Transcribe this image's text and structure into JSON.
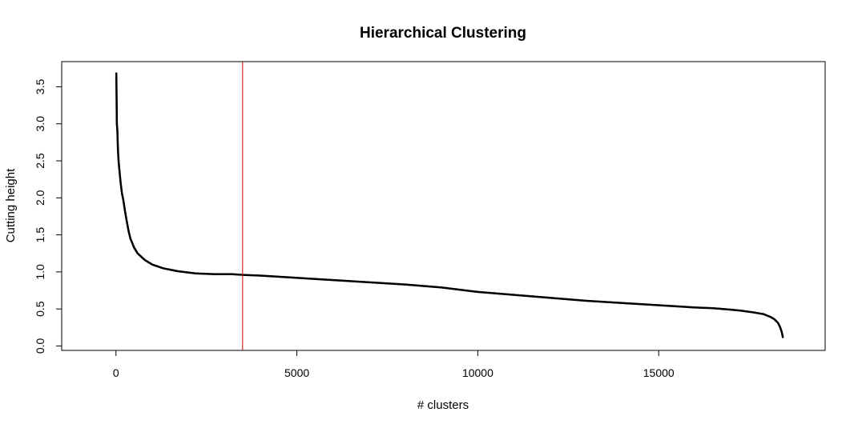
{
  "chart_data": {
    "type": "scatter",
    "title": "Hierarchical Clustering",
    "xlabel": "# clusters",
    "ylabel": "Cutting height",
    "xlim": [
      -1500,
      19600
    ],
    "ylim": [
      -0.06,
      3.84
    ],
    "x_ticks": [
      0,
      5000,
      10000,
      15000
    ],
    "x_tick_labels": [
      "0",
      "5000",
      "10000",
      "15000"
    ],
    "y_ticks": [
      0.0,
      0.5,
      1.0,
      1.5,
      2.0,
      2.5,
      3.0,
      3.5
    ],
    "y_tick_labels": [
      "0.0",
      "0.5",
      "1.0",
      "1.5",
      "2.0",
      "2.5",
      "3.0",
      "3.5"
    ],
    "grid": false,
    "legend": "none",
    "point_color": "#000000",
    "series": [
      {
        "x": [
          10,
          25,
          40,
          50,
          60,
          75,
          90,
          110,
          130,
          150,
          170,
          200,
          250,
          300,
          350,
          400,
          500,
          600,
          800,
          1000,
          1300,
          1700,
          2200,
          2700,
          3200,
          3500,
          4000,
          5000,
          6000,
          7000,
          8000,
          9000,
          10000,
          11000,
          12000,
          13000,
          14000,
          15000,
          16000,
          16500,
          17000,
          17300,
          17600,
          17900,
          18100,
          18200,
          18300,
          18350,
          18400,
          18430
        ],
        "y": [
          3.68,
          3.0,
          2.9,
          2.72,
          2.6,
          2.48,
          2.4,
          2.3,
          2.2,
          2.12,
          2.05,
          1.98,
          1.82,
          1.68,
          1.55,
          1.45,
          1.33,
          1.25,
          1.16,
          1.1,
          1.05,
          1.01,
          0.98,
          0.97,
          0.97,
          0.96,
          0.95,
          0.92,
          0.89,
          0.86,
          0.83,
          0.79,
          0.73,
          0.69,
          0.65,
          0.61,
          0.58,
          0.55,
          0.52,
          0.51,
          0.49,
          0.475,
          0.455,
          0.43,
          0.39,
          0.36,
          0.31,
          0.26,
          0.19,
          0.12
        ]
      }
    ],
    "vline": {
      "x": 3500,
      "color": "#cc0000"
    }
  }
}
